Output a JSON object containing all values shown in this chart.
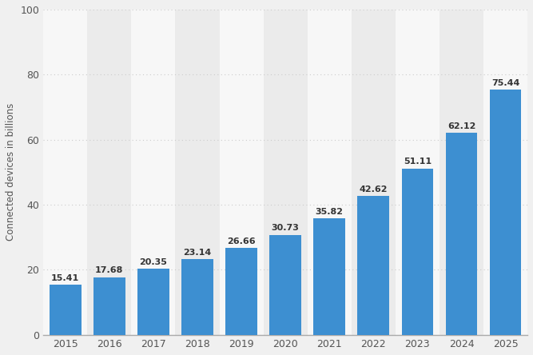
{
  "years": [
    "2015",
    "2016",
    "2017",
    "2018",
    "2019",
    "2020",
    "2021",
    "2022",
    "2023",
    "2024",
    "2025"
  ],
  "values": [
    15.41,
    17.68,
    20.35,
    23.14,
    26.66,
    30.73,
    35.82,
    42.62,
    51.11,
    62.12,
    75.44
  ],
  "bar_color": "#3d8fd1",
  "ylabel": "Connected devices in billions",
  "ylim": [
    0,
    100
  ],
  "yticks": [
    0,
    20,
    40,
    60,
    80,
    100
  ],
  "bg_color": "#f0f0f0",
  "col_bg_light": "#f7f7f7",
  "col_bg_dark": "#ebebeb",
  "grid_color": "#cccccc",
  "label_color": "#555555",
  "value_label_color": "#333333",
  "bar_width": 0.72,
  "ylabel_fontsize": 8.5,
  "tick_fontsize": 9,
  "value_fontsize": 8
}
